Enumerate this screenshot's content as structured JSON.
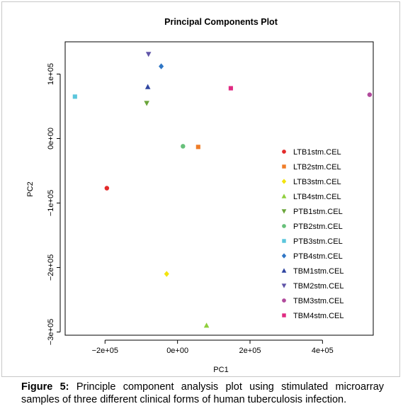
{
  "chart_data": {
    "type": "scatter",
    "title": "Principal Components Plot",
    "xlabel": "PC1",
    "ylabel": "PC2",
    "xlim": [
      -310000,
      540000
    ],
    "ylim": [
      -305000,
      150000
    ],
    "x_ticks": [
      {
        "value": -200000,
        "label": "−2e+05"
      },
      {
        "value": 0,
        "label": "0e+00"
      },
      {
        "value": 200000,
        "label": "2e+05"
      },
      {
        "value": 400000,
        "label": "4e+05"
      }
    ],
    "y_ticks": [
      {
        "value": 100000,
        "label": "1e+05"
      },
      {
        "value": 0,
        "label": "0e+00"
      },
      {
        "value": -100000,
        "label": "−1e+05"
      },
      {
        "value": -200000,
        "label": "−2e+05"
      },
      {
        "value": -300000,
        "label": "−3e+05"
      }
    ],
    "grid": false,
    "legend_position": "right",
    "series": [
      {
        "name": "LTB1stm.CEL",
        "marker": "circle",
        "color": "#e32b2b",
        "x": -195000,
        "y": -77000
      },
      {
        "name": "LTB2stm.CEL",
        "marker": "square",
        "color": "#ef7d28",
        "x": 57000,
        "y": -13000
      },
      {
        "name": "LTB3stm.CEL",
        "marker": "diamond",
        "color": "#f3e40e",
        "x": -30000,
        "y": -210000
      },
      {
        "name": "LTB4stm.CEL",
        "marker": "triangle-up",
        "color": "#8fcf3c",
        "x": 80000,
        "y": -290000
      },
      {
        "name": "PTB1stm.CEL",
        "marker": "triangle-down",
        "color": "#6aa53a",
        "x": -85000,
        "y": 55000
      },
      {
        "name": "PTB2stm.CEL",
        "marker": "circle",
        "color": "#67c07a",
        "x": 15000,
        "y": -12000
      },
      {
        "name": "PTB3stm.CEL",
        "marker": "square",
        "color": "#5bc6dc",
        "x": -283000,
        "y": 65000
      },
      {
        "name": "PTB4stm.CEL",
        "marker": "diamond",
        "color": "#2f76c5",
        "x": -45000,
        "y": 112000
      },
      {
        "name": "TBM1stm.CEL",
        "marker": "triangle-up",
        "color": "#2f45a0",
        "x": -82000,
        "y": 80000
      },
      {
        "name": "TBM2stm.CEL",
        "marker": "triangle-down",
        "color": "#6055a8",
        "x": -80000,
        "y": 131000
      },
      {
        "name": "TBM3stm.CEL",
        "marker": "circle",
        "color": "#b14a9c",
        "x": 530000,
        "y": 68000
      },
      {
        "name": "TBM4stm.CEL",
        "marker": "square",
        "color": "#e02a82",
        "x": 147000,
        "y": 78000
      }
    ]
  },
  "caption": {
    "label": "Figure 5:",
    "text": "Principle component analysis plot using stimulated microarray samples of three different clinical forms of human tuberculosis infection."
  }
}
